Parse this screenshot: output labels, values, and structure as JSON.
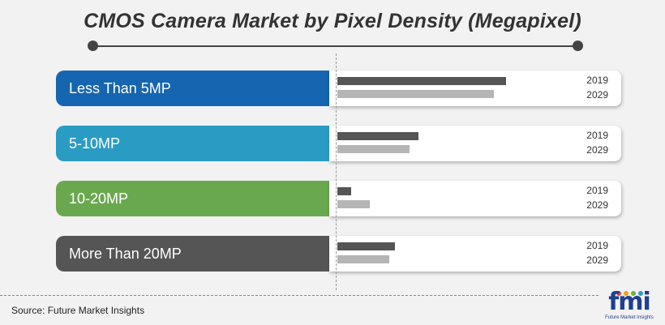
{
  "title": "CMOS Camera Market by Pixel Density (Megapixel)",
  "source": "Source: Future Market Insights",
  "logo": {
    "text": "fmi",
    "subtitle": "Future Market Insights"
  },
  "colors": {
    "bar_2019": "#555555",
    "bar_2029": "#b5b5b5",
    "categories": [
      "#1565b0",
      "#2a9cc4",
      "#6aa84f",
      "#555555"
    ]
  },
  "chart_data": {
    "type": "bar",
    "orientation": "horizontal",
    "categories": [
      "Less Than 5MP",
      "5-10MP",
      "10-20MP",
      "More Than 20MP"
    ],
    "series": [
      {
        "name": "2019",
        "values": [
          100,
          48,
          8,
          34
        ]
      },
      {
        "name": "2029",
        "values": [
          93,
          43,
          19,
          31
        ]
      }
    ],
    "xlim": [
      0,
      100
    ],
    "grid": false,
    "legend": "right of each bar group"
  }
}
